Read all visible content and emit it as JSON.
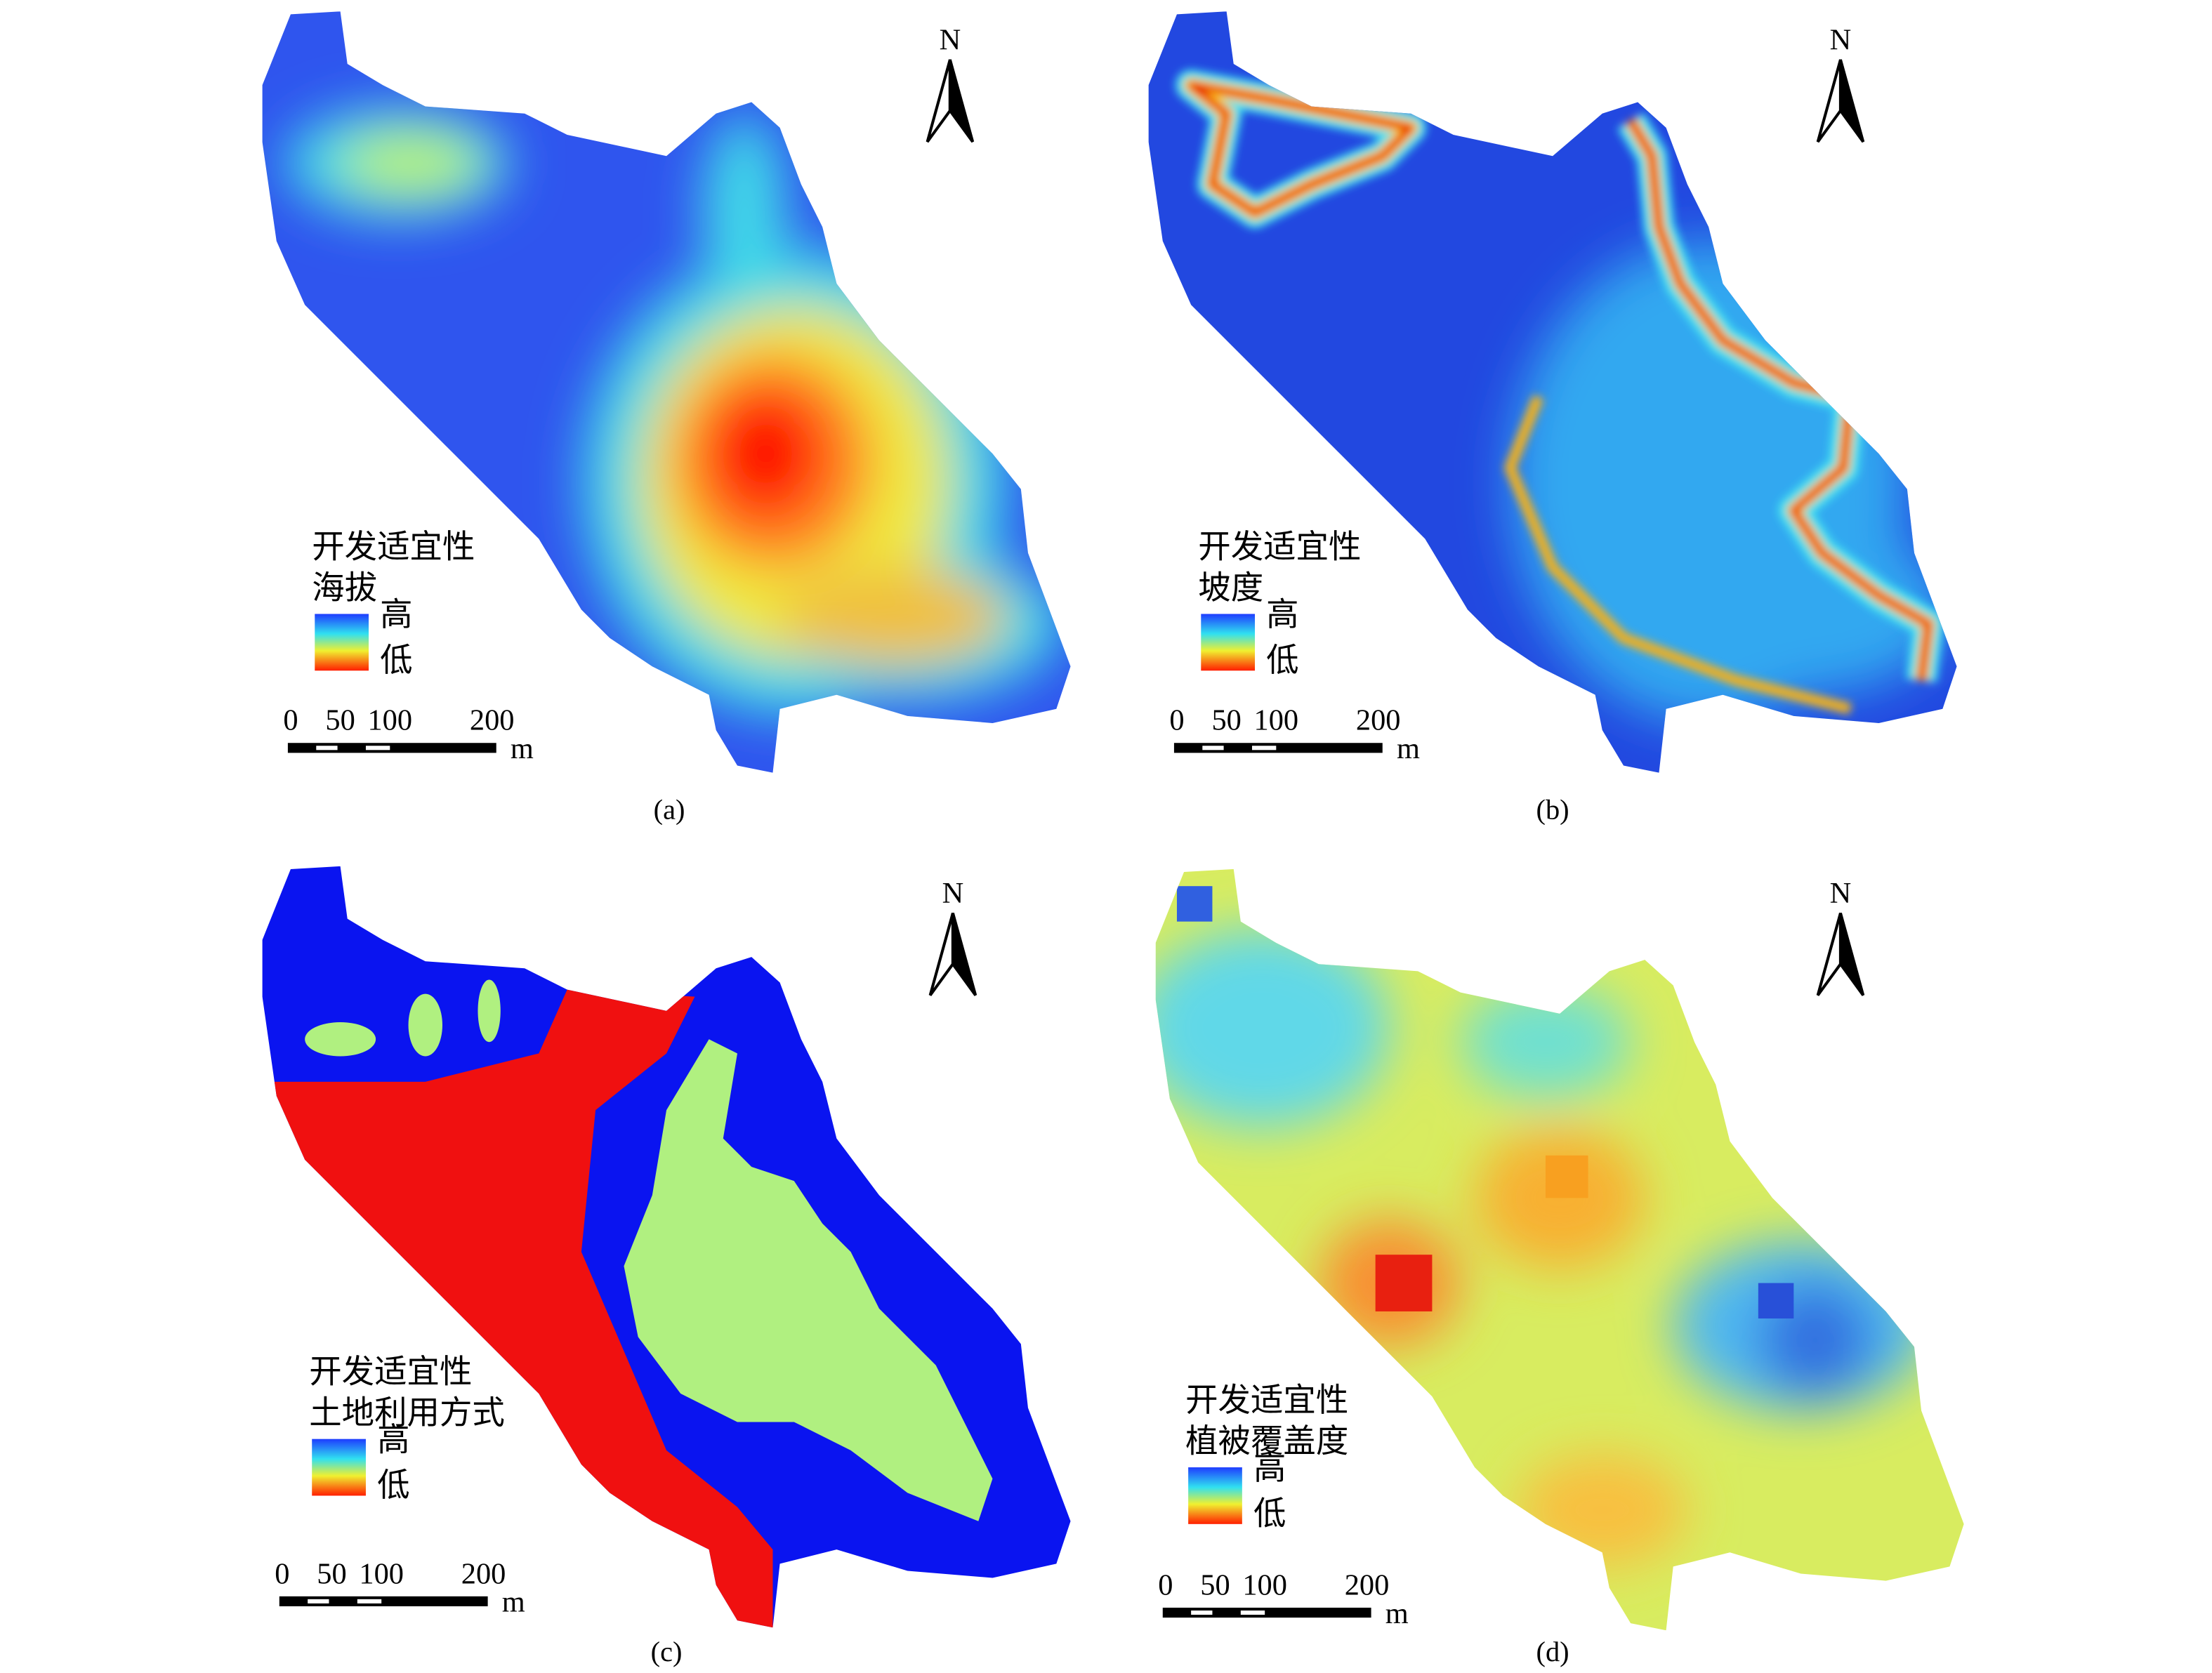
{
  "panels": [
    {
      "caption": "(a)",
      "legend_title": "开发适宜性",
      "legend_subtitle": "海拔",
      "legend_high": "高",
      "legend_low": "低",
      "scale_labels": [
        0,
        50,
        100,
        200
      ],
      "scale_unit": "m",
      "north": "N"
    },
    {
      "caption": "(b)",
      "legend_title": "开发适宜性",
      "legend_subtitle": "坡度",
      "legend_high": "高",
      "legend_low": "低",
      "scale_labels": [
        0,
        50,
        100,
        200
      ],
      "scale_unit": "m",
      "north": "N"
    },
    {
      "caption": "(c)",
      "legend_title": "开发适宜性",
      "legend_subtitle": "土地利用方式",
      "legend_high": "高",
      "legend_low": "低",
      "scale_labels": [
        0,
        50,
        100,
        200
      ],
      "scale_unit": "m",
      "north": "N"
    },
    {
      "caption": "(d)",
      "legend_title": "开发适宜性",
      "legend_subtitle": "植被覆盖度",
      "legend_high": "高",
      "legend_low": "低",
      "scale_labels": [
        0,
        50,
        100,
        200
      ],
      "scale_unit": "m",
      "north": "N"
    }
  ]
}
